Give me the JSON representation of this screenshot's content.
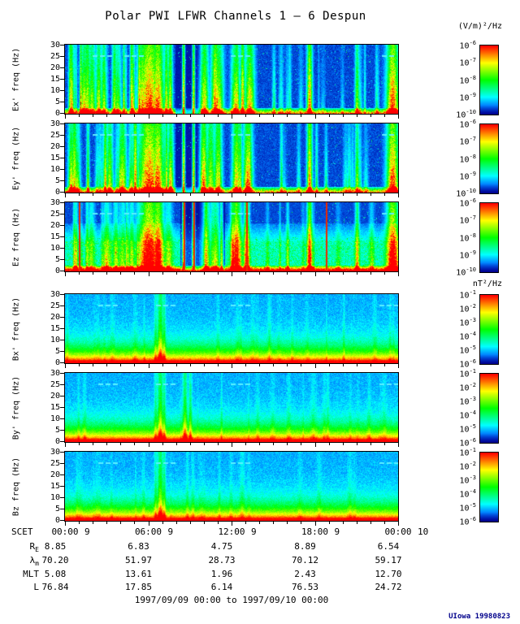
{
  "title": "Polar PWI LFWR Channels 1 — 6 Despun",
  "colorbar_units": {
    "electric": "(V/m)²/Hz",
    "magnetic": "nT²/Hz"
  },
  "freq_axis": {
    "unit": "Hz",
    "ticks": [
      "30",
      "25",
      "20",
      "15",
      "10",
      "5",
      "0"
    ]
  },
  "panels": [
    {
      "id": "ex",
      "ylabel": "Ex' freq (Hz)",
      "field": "E",
      "seed": 11
    },
    {
      "id": "ey",
      "ylabel": "Ey' freq (Hz)",
      "field": "E",
      "seed": 23
    },
    {
      "id": "ez",
      "ylabel": "Ez freq (Hz)",
      "field": "E",
      "seed": 37
    },
    {
      "id": "bx",
      "ylabel": "Bx' freq (Hz)",
      "field": "B",
      "seed": 41
    },
    {
      "id": "by",
      "ylabel": "By' freq (Hz)",
      "field": "B",
      "seed": 53
    },
    {
      "id": "bz",
      "ylabel": "Bz freq (Hz)",
      "field": "B",
      "seed": 67
    }
  ],
  "colorbars": {
    "E": {
      "exponents": [
        "-6",
        "-7",
        "-8",
        "-9",
        "-10"
      ]
    },
    "B": {
      "exponents": [
        "-1",
        "-2",
        "-3",
        "-4",
        "-5",
        "-6"
      ]
    }
  },
  "time_axis": {
    "label": "SCET",
    "ticks": [
      {
        "time": "00:00",
        "day": "9"
      },
      {
        "time": "06:00",
        "day": "9"
      },
      {
        "time": "12:00",
        "day": "9"
      },
      {
        "time": "18:00",
        "day": "9"
      },
      {
        "time": "00:00",
        "day": "10"
      }
    ]
  },
  "ephemeris": [
    {
      "base": "R",
      "sub": "E",
      "values": [
        "8.85",
        "6.83",
        "4.75",
        "8.89",
        "6.54"
      ]
    },
    {
      "base": "λ",
      "sub": "m",
      "values": [
        "70.20",
        "51.97",
        "28.73",
        "70.12",
        "59.17"
      ]
    },
    {
      "base": "MLT",
      "sub": "",
      "values": [
        "5.08",
        "13.61",
        "1.96",
        "2.43",
        "12.70"
      ]
    },
    {
      "base": "L",
      "sub": "",
      "values": [
        "76.84",
        "17.85",
        "6.14",
        "76.53",
        "24.72"
      ]
    }
  ],
  "footer": {
    "range": "1997/09/09 00:00 to 1997/09/10 00:00",
    "credit": "UIowa 19980823"
  },
  "chart_data": {
    "type": "heatmap",
    "title": "Polar PWI LFWR Channels 1 — 6 Despun",
    "x": {
      "label": "SCET",
      "start": "1997/09/09 00:00",
      "end": "1997/09/10 00:00",
      "tick_hours": [
        0,
        6,
        12,
        18,
        24
      ],
      "tick_labels": [
        "00:00 9",
        "06:00 9",
        "12:00 9",
        "18:00 9",
        "00:00 10"
      ]
    },
    "y": {
      "label": "freq (Hz)",
      "lim": [
        0,
        30
      ],
      "ticks": [
        0,
        5,
        10,
        15,
        20,
        25,
        30
      ]
    },
    "panels": [
      {
        "name": "Ex'",
        "units": "(V/m)²/Hz",
        "color_scale_log10": [
          -10,
          -6
        ]
      },
      {
        "name": "Ey'",
        "units": "(V/m)²/Hz",
        "color_scale_log10": [
          -10,
          -6
        ]
      },
      {
        "name": "Ez",
        "units": "(V/m)²/Hz",
        "color_scale_log10": [
          -10,
          -6
        ]
      },
      {
        "name": "Bx'",
        "units": "nT²/Hz",
        "color_scale_log10": [
          -6,
          -1
        ]
      },
      {
        "name": "By'",
        "units": "nT²/Hz",
        "color_scale_log10": [
          -6,
          -1
        ]
      },
      {
        "name": "Bz",
        "units": "nT²/Hz",
        "color_scale_log10": [
          -6,
          -1
        ]
      }
    ],
    "ephemeris_table": {
      "columns": [
        "00:00 9",
        "06:00 9",
        "12:00 9",
        "18:00 9",
        "00:00 10"
      ],
      "rows": [
        {
          "label": "RE",
          "values": [
            8.85,
            6.83,
            4.75,
            8.89,
            6.54
          ]
        },
        {
          "label": "λm",
          "values": [
            70.2,
            51.97,
            28.73,
            70.12,
            59.17
          ]
        },
        {
          "label": "MLT",
          "values": [
            5.08,
            13.61,
            1.96,
            2.43,
            12.7
          ]
        },
        {
          "label": "L",
          "values": [
            76.84,
            17.85,
            6.14,
            76.53,
            24.72
          ]
        }
      ]
    },
    "notes": "Rainbow-colormap dynamic spectrograms, 0-30 Hz vs 24 h of time. Electric panels (Ex',Ey',Ez): dark-blue background with intense broadband vertical bursts from 00:00-08:00, a quiet dark band near 08:30-10:00 crossed by thin red lines, strong red bursts near 10:00-11:00 and 12:00-13:30, isolated bursts near 17:30 and 21:00, and a strong burst at the right edge; cyan interference dashes near 25 Hz. Magnetic panels (Bx',By',Bz): power decreases smoothly with frequency (red at 0-3 Hz through yellow, green, cyan to blue at 30 Hz) with a narrow enhancement near 07:00 and cyan dashes near 25 Hz. Individual spectral pixel values are not recoverable from the image."
  }
}
